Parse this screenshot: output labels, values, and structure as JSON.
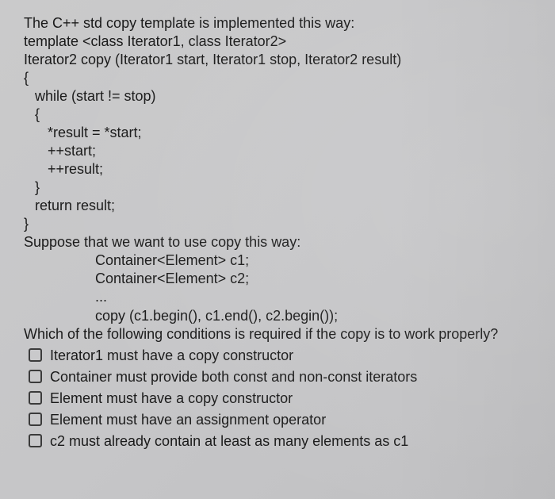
{
  "question": {
    "intro_line": "The C++ std copy template is implemented this way:",
    "code": {
      "l1": "template <class Iterator1, class Iterator2>",
      "l2": "Iterator2 copy (Iterator1 start, Iterator1 stop, Iterator2 result)",
      "l3": "{",
      "l4": "while (start != stop)",
      "l5": "{",
      "l6": "*result = *start;",
      "l7": "++start;",
      "l8": "++result;",
      "l9": "}",
      "l10": "return result;",
      "l11": "}"
    },
    "suppose": "Suppose that we want to use copy this way:",
    "usage": {
      "u1": "Container<Element> c1;",
      "u2": "Container<Element> c2;",
      "u3": "...",
      "u4": "copy (c1.begin(), c1.end(), c2.begin());"
    },
    "prompt": "Which of the following conditions is required if the copy is to work properly?"
  },
  "options": [
    {
      "label": "Iterator1 must have a copy constructor"
    },
    {
      "label": "Container must provide both const and non-const iterators"
    },
    {
      "label": "Element must have a copy constructor"
    },
    {
      "label": "Element must have an assignment operator"
    },
    {
      "label": "c2 must already contain at least as many elements as c1"
    }
  ]
}
